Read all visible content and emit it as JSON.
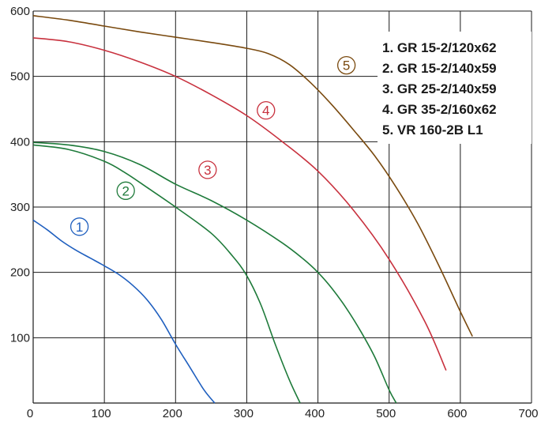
{
  "chart_data": {
    "type": "line",
    "title": "",
    "xlabel": "",
    "ylabel": "",
    "xlim": [
      0,
      700
    ],
    "ylim": [
      0,
      600
    ],
    "x_ticks": [
      "0",
      "100",
      "200",
      "300",
      "400",
      "500",
      "600",
      "700"
    ],
    "y_ticks": [
      "100",
      "200",
      "300",
      "400",
      "500",
      "600"
    ],
    "grid": true,
    "legend_position": "top-right",
    "legend": [
      "1. GR 15-2/120x62",
      "2. GR 15-2/140x59",
      "3. GR 25-2/140x59",
      "4. GR 35-2/160x62",
      "5. VR 160-2B L1"
    ],
    "series": [
      {
        "marker": "1",
        "color": "#1f5fbf",
        "marker_at": [
          65,
          270
        ],
        "x": [
          0,
          20,
          40,
          60,
          80,
          100,
          120,
          140,
          160,
          180,
          200,
          220,
          240,
          255
        ],
        "y": [
          280,
          265,
          248,
          234,
          222,
          210,
          197,
          180,
          158,
          128,
          90,
          55,
          20,
          0
        ]
      },
      {
        "marker": "2",
        "color": "#1e7a3a",
        "marker_at": [
          130,
          325
        ],
        "x": [
          0,
          50,
          100,
          130,
          160,
          200,
          250,
          280,
          300,
          320,
          340,
          360,
          375
        ],
        "y": [
          395,
          388,
          370,
          352,
          330,
          300,
          260,
          225,
          195,
          150,
          90,
          35,
          0
        ]
      },
      {
        "marker": "2",
        "color": "#1e7a3a",
        "marker_at": null,
        "x": [
          0,
          50,
          100,
          150,
          200,
          250,
          300,
          350,
          380,
          400,
          420,
          440,
          460,
          480,
          500,
          510
        ],
        "y": [
          399,
          395,
          385,
          365,
          335,
          310,
          280,
          245,
          220,
          200,
          175,
          145,
          110,
          70,
          20,
          0
        ]
      },
      {
        "marker": "3",
        "color": "#c8313e",
        "marker_at": [
          245,
          357
        ],
        "x": [
          0,
          50,
          100,
          150,
          200,
          250,
          300,
          350,
          400,
          450,
          500,
          550,
          580
        ],
        "y": [
          559,
          553,
          540,
          522,
          500,
          472,
          440,
          400,
          355,
          295,
          220,
          125,
          50
        ]
      },
      {
        "marker": "4",
        "color": "#c8313e",
        "marker_at": [
          327,
          448
        ],
        "x": [],
        "y": []
      },
      {
        "marker": "5",
        "color": "#7a4a0f",
        "marker_at": [
          440,
          517
        ],
        "x": [
          0,
          50,
          100,
          150,
          200,
          250,
          300,
          330,
          360,
          390,
          420,
          450,
          480,
          510,
          540,
          570,
          600,
          617
        ],
        "y": [
          593,
          586,
          577,
          568,
          560,
          552,
          543,
          535,
          518,
          490,
          456,
          418,
          378,
          330,
          275,
          210,
          140,
          102
        ]
      }
    ]
  }
}
